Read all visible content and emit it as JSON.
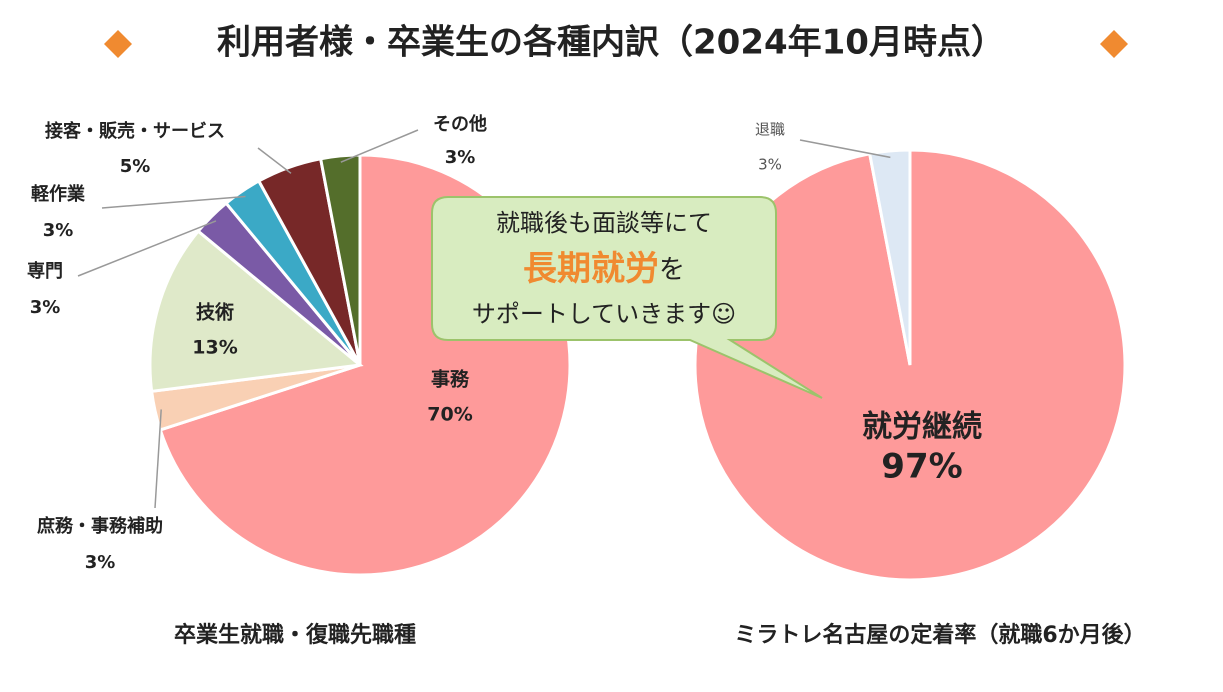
{
  "title": "利用者様・卒業生の各種内訳（2024年10月時点）",
  "bubble": {
    "line1": "就職後も面談等にて",
    "highlight": "長期就労",
    "highlight_rest": "を",
    "line3": "サポートしていきます☺"
  },
  "chart_data": [
    {
      "type": "pie",
      "caption": "卒業生就職・復職先職種",
      "categories": [
        "事務",
        "庶務・事務補助",
        "技術",
        "専門",
        "軽作業",
        "接客・販売・サービス",
        "その他"
      ],
      "values": [
        70,
        3,
        13,
        3,
        3,
        5,
        3
      ],
      "value_labels": [
        "70%",
        "3%",
        "13%",
        "3%",
        "3%",
        "5%",
        "3%"
      ],
      "colors": [
        "#fe9a9a",
        "#f9d0b4",
        "#dfe9c9",
        "#7a5aa6",
        "#3ba9c6",
        "#772828",
        "#546e2b"
      ]
    },
    {
      "type": "pie",
      "caption": "ミラトレ名古屋の定着率（就職6か月後）",
      "categories": [
        "就労継続",
        "退職"
      ],
      "values": [
        97,
        3
      ],
      "value_labels": [
        "97%",
        "3%"
      ],
      "colors": [
        "#fe9a9a",
        "#dde8f4"
      ]
    }
  ]
}
